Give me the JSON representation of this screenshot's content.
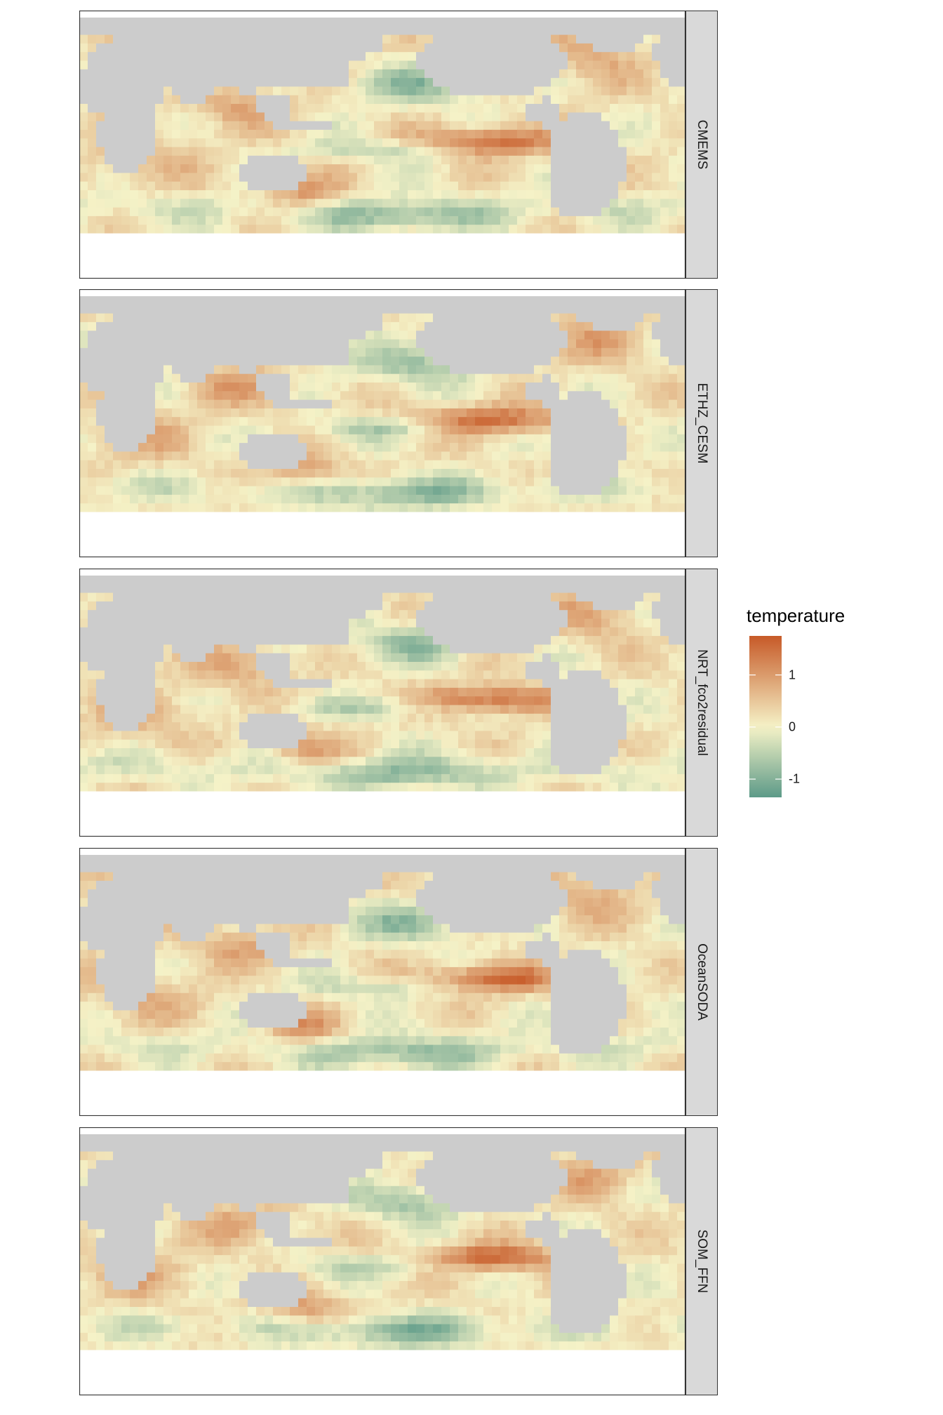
{
  "colors": {
    "land": "#cccccc",
    "missing": "#ffffff",
    "panel_border": "#333333",
    "strip_fill": "#d9d9d9",
    "scale_low": "#5c9a88",
    "scale_mid": "#f5f2c7",
    "scale_high": "#c75a28"
  },
  "legend": {
    "title": "temperature",
    "min": -1.35,
    "max": 1.75,
    "ticks": [
      {
        "value": 1,
        "label": "1"
      },
      {
        "value": 0,
        "label": "0"
      },
      {
        "value": -1,
        "label": "-1"
      }
    ]
  },
  "panels": [
    {
      "label": "CMEMS"
    },
    {
      "label": "ETHZ_CESM"
    },
    {
      "label": "NRT_fco2residual"
    },
    {
      "label": "OceanSODA"
    },
    {
      "label": "SOM_FFN"
    }
  ]
}
